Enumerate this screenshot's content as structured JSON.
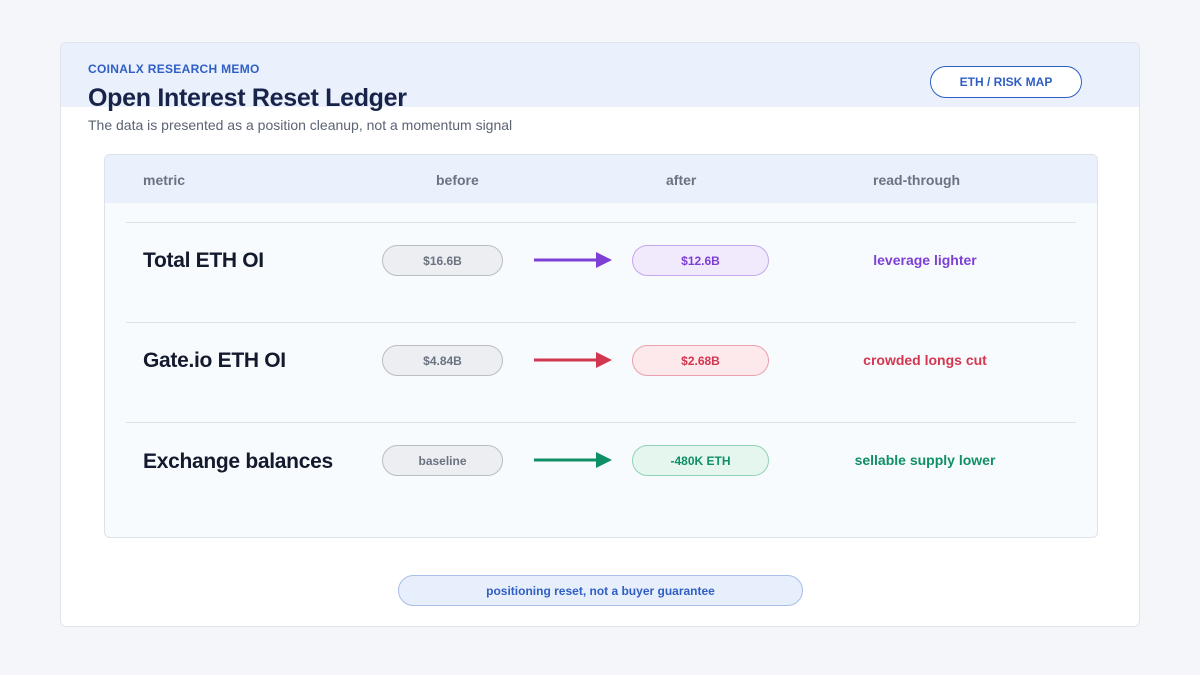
{
  "memo": {
    "eyebrow": "COINALX RESEARCH MEMO",
    "title": "Open Interest Reset Ledger",
    "subtitle": "The data is presented as a position cleanup, not a momentum signal",
    "tag": "ETH / RISK MAP"
  },
  "table": {
    "headers": {
      "metric": "metric",
      "before": "before",
      "after": "after",
      "read_through": "read-through"
    },
    "rows": [
      {
        "metric": "Total ETH OI",
        "before": "$16.6B",
        "after": "$12.6B",
        "read_through": "leverage lighter",
        "color": "#7d3fd6",
        "after_bg": "#f1eafd",
        "after_border": "#c4a6ef"
      },
      {
        "metric": "Gate.io ETH OI",
        "before": "$4.84B",
        "after": "$2.68B",
        "read_through": "crowded longs cut",
        "color": "#d3364f",
        "after_bg": "#fde8ec",
        "after_border": "#eaa1ad"
      },
      {
        "metric": "Exchange balances",
        "before": "baseline",
        "after": "-480K ETH",
        "read_through": "sellable supply lower",
        "color": "#0f8f66",
        "after_bg": "#e5f6ef",
        "after_border": "#8fd2b5"
      }
    ]
  },
  "footer": {
    "note": "positioning reset, not a buyer guarantee"
  }
}
